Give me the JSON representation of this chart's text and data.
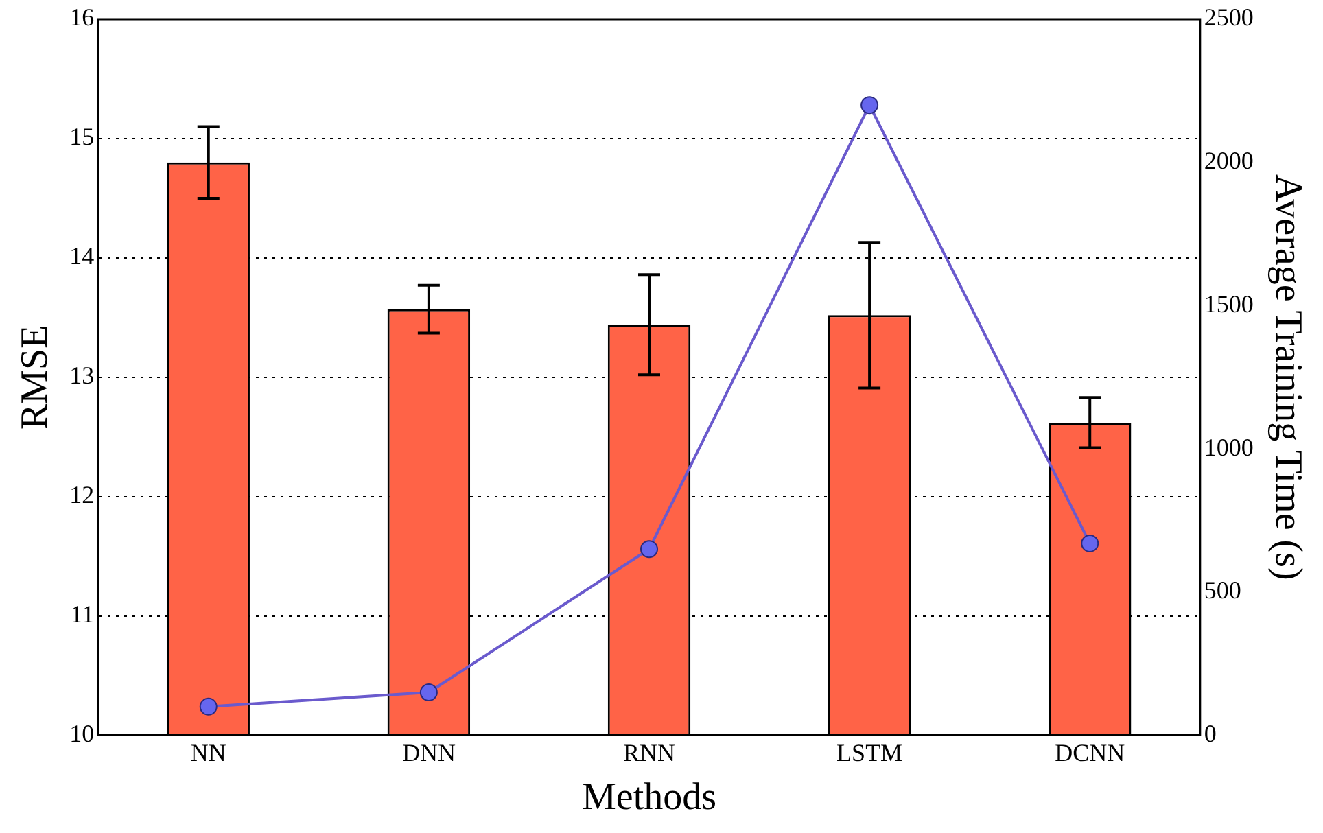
{
  "chart_data": {
    "type": "bar",
    "xlabel": "Methods",
    "ylabel": "RMSE",
    "y2label": "Average Training Time (s)",
    "categories": [
      "NN",
      "DNN",
      "RNN",
      "LSTM",
      "DCNN"
    ],
    "series": [
      {
        "color": "#ff6347",
        "values": [
          14.8,
          13.57,
          13.44,
          13.52,
          12.62
        ],
        "errors": [
          0.3,
          0.2,
          0.42,
          0.61,
          0.21
        ]
      },
      {
        "type": "line",
        "axis": "y2",
        "color": "#6a5acd",
        "marker": "circle",
        "values": [
          100,
          150,
          650,
          2200,
          670
        ]
      }
    ],
    "ylim": [
      10,
      16
    ],
    "yticks": [
      10,
      11,
      12,
      13,
      14,
      15,
      16
    ],
    "y2lim": [
      0,
      2500
    ],
    "y2ticks": [
      0,
      500,
      1000,
      1500,
      2000,
      2500
    ],
    "grid": "y",
    "line_style": "solid",
    "legend": false
  }
}
